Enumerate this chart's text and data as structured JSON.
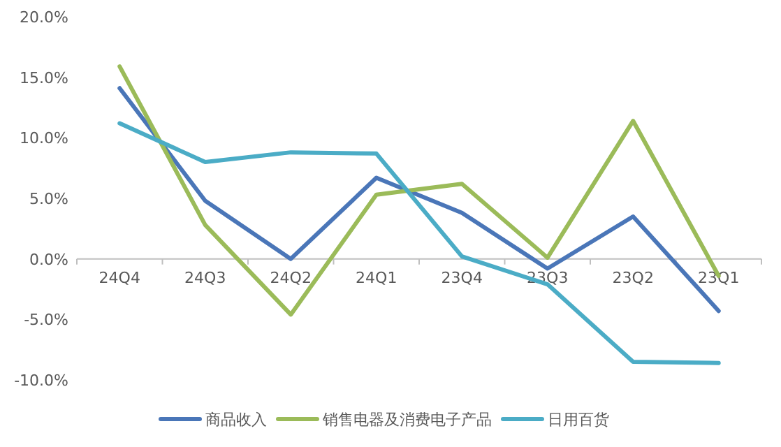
{
  "chart_data": {
    "type": "line",
    "categories": [
      "24Q4",
      "24Q3",
      "24Q2",
      "24Q1",
      "23Q4",
      "23Q3",
      "23Q2",
      "23Q1"
    ],
    "ylim": [
      -10,
      20
    ],
    "yticks": [
      {
        "value": -10,
        "label": "-10.0%"
      },
      {
        "value": -5,
        "label": "-5.0%"
      },
      {
        "value": 0,
        "label": "0.0%"
      },
      {
        "value": 5,
        "label": "5.0%"
      },
      {
        "value": 10,
        "label": "10.0%"
      },
      {
        "value": 15,
        "label": "15.0%"
      },
      {
        "value": 20,
        "label": "20.0%"
      }
    ],
    "legend": "bottom",
    "grid": false,
    "marker": "none",
    "line_style": "solid",
    "series": [
      {
        "name": "商品收入",
        "color": "#4a76b8",
        "values": [
          14.1,
          4.8,
          0.0,
          6.7,
          3.8,
          -0.8,
          3.5,
          -4.3
        ]
      },
      {
        "name": "销售电器及消费电子产品",
        "color": "#9bbb59",
        "values": [
          15.9,
          2.8,
          -4.6,
          5.3,
          6.2,
          0.1,
          11.4,
          -1.4
        ]
      },
      {
        "name": "日用百货",
        "color": "#4bacc6",
        "values": [
          11.2,
          8.0,
          8.8,
          8.7,
          0.2,
          -2.1,
          -8.5,
          -8.6
        ]
      }
    ]
  }
}
